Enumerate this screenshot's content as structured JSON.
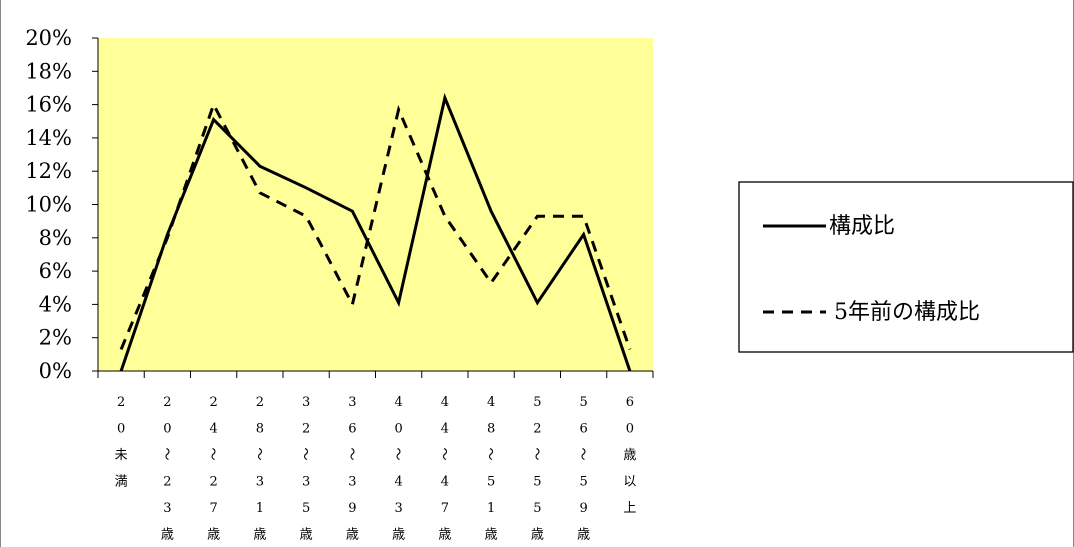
{
  "chart_data": {
    "type": "line",
    "categories": [
      "20未満",
      "20〜23歳",
      "24〜27歳",
      "28〜31歳",
      "32〜35歳",
      "36〜39歳",
      "40〜43歳",
      "44〜47歳",
      "48〜51歳",
      "52〜55歳",
      "56〜59歳",
      "60歳以上"
    ],
    "category_glyphs": [
      [
        "2",
        "0",
        "未",
        "満"
      ],
      [
        "2",
        "0",
        "〜",
        "2",
        "3",
        "歳"
      ],
      [
        "2",
        "4",
        "〜",
        "2",
        "7",
        "歳"
      ],
      [
        "2",
        "8",
        "〜",
        "3",
        "1",
        "歳"
      ],
      [
        "3",
        "2",
        "〜",
        "3",
        "5",
        "歳"
      ],
      [
        "3",
        "6",
        "〜",
        "3",
        "9",
        "歳"
      ],
      [
        "4",
        "0",
        "〜",
        "4",
        "3",
        "歳"
      ],
      [
        "4",
        "4",
        "〜",
        "4",
        "7",
        "歳"
      ],
      [
        "4",
        "8",
        "〜",
        "5",
        "1",
        "歳"
      ],
      [
        "5",
        "2",
        "〜",
        "5",
        "5",
        "歳"
      ],
      [
        "5",
        "6",
        "〜",
        "5",
        "9",
        "歳"
      ],
      [
        "6",
        "0",
        "歳",
        "以",
        "上"
      ]
    ],
    "series": [
      {
        "name": "構成比",
        "style": "solid",
        "values": [
          0,
          8.2,
          15.1,
          12.3,
          11.0,
          9.6,
          4.1,
          16.4,
          9.6,
          4.1,
          8.2,
          0
        ]
      },
      {
        "name": "5年前の構成比",
        "style": "dashed",
        "values": [
          1.3,
          8.0,
          16.0,
          10.7,
          9.3,
          4.0,
          15.7,
          9.3,
          5.3,
          9.3,
          9.3,
          1.3
        ]
      }
    ],
    "y_ticks": [
      "0%",
      "2%",
      "4%",
      "6%",
      "8%",
      "10%",
      "12%",
      "14%",
      "16%",
      "18%",
      "20%"
    ],
    "ylim": [
      0,
      20
    ],
    "y_unit": "%",
    "plot_background": "#ffff99",
    "line_color": "#000000",
    "grid": false,
    "legend_position": "right"
  }
}
